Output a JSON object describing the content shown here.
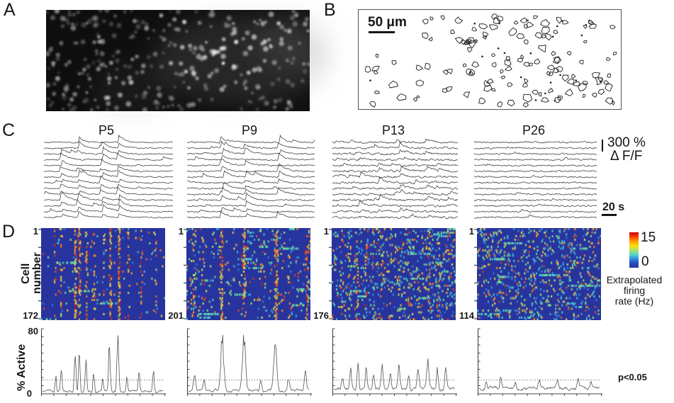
{
  "panels": {
    "a": {
      "label": "A"
    },
    "b": {
      "label": "B",
      "scale_bar_label": "50 μm"
    },
    "c": {
      "label": "C",
      "amp_scale": "300 %",
      "amp_unit": "Δ F/F",
      "time_scale": "20 s"
    },
    "d": {
      "label": "D",
      "y_axis_label": "Cell number",
      "first_cell": "1",
      "colorbar": {
        "max": "15",
        "min": "0",
        "caption_lines": [
          "Extrapolated",
          "firing",
          "rate (Hz)"
        ]
      },
      "active": {
        "y_max": "80",
        "y_min": "0",
        "y_label": "% Active",
        "significance": "p<0.05"
      }
    }
  },
  "chart_data": {
    "type": "composite",
    "heatmap": {
      "value_label": "Extrapolated firing rate (Hz)",
      "range": [
        0,
        15
      ],
      "cells_per_age": [
        172,
        201,
        176,
        114
      ]
    },
    "active": {
      "ylabel": "% Active",
      "ylim": [
        0,
        80
      ],
      "threshold_label": "p<0.05",
      "threshold_value": 17
    },
    "groups": [
      {
        "title": "P5",
        "cell_count": "172",
        "sync_events": [
          0.14,
          0.27,
          0.45,
          0.58
        ],
        "sync_prob": 0.8,
        "trace_amp": 7,
        "indiv_events": 1,
        "trace_noise": 0.85,
        "active_base": 3,
        "active_noise": 2.2,
        "stripe_w": 0.006,
        "participation": 0.8,
        "scatter": 0.015,
        "row_streak": 0.08,
        "active_peaks": [
          {
            "x": 0.11,
            "h": 18,
            "w": 0.008
          },
          {
            "x": 0.155,
            "h": 30,
            "w": 0.008
          },
          {
            "x": 0.27,
            "h": 52,
            "w": 0.009
          },
          {
            "x": 0.305,
            "h": 55,
            "w": 0.008
          },
          {
            "x": 0.36,
            "h": 40,
            "w": 0.009
          },
          {
            "x": 0.425,
            "h": 26,
            "w": 0.008
          },
          {
            "x": 0.5,
            "h": 15,
            "w": 0.008
          },
          {
            "x": 0.555,
            "h": 60,
            "w": 0.009
          },
          {
            "x": 0.625,
            "h": 66,
            "w": 0.01
          },
          {
            "x": 0.7,
            "h": 22,
            "w": 0.008
          },
          {
            "x": 0.8,
            "h": 26,
            "w": 0.008
          },
          {
            "x": 0.92,
            "h": 26,
            "w": 0.009
          }
        ]
      },
      {
        "title": "P9",
        "cell_count": "201",
        "sync_events": [
          0.28,
          0.46,
          0.72
        ],
        "sync_prob": 0.75,
        "trace_amp": 6.5,
        "indiv_events": 1.5,
        "trace_noise": 1.0,
        "active_base": 4,
        "active_noise": 2.5,
        "stripe_w": 0.011,
        "participation": 0.55,
        "scatter": 0.05,
        "row_streak": 0.25,
        "active_peaks": [
          {
            "x": 0.05,
            "h": 20,
            "w": 0.012
          },
          {
            "x": 0.13,
            "h": 12,
            "w": 0.01
          },
          {
            "x": 0.28,
            "h": 62,
            "w": 0.018
          },
          {
            "x": 0.46,
            "h": 60,
            "w": 0.018
          },
          {
            "x": 0.6,
            "h": 14,
            "w": 0.01
          },
          {
            "x": 0.72,
            "h": 58,
            "w": 0.018
          },
          {
            "x": 0.83,
            "h": 16,
            "w": 0.012
          },
          {
            "x": 0.97,
            "h": 24,
            "w": 0.012
          }
        ]
      },
      {
        "title": "P13",
        "cell_count": "176",
        "sync_events": [
          0.22,
          0.38,
          0.55,
          0.75
        ],
        "sync_prob": 0.45,
        "trace_amp": 5.5,
        "indiv_events": 3,
        "trace_noise": 1.4,
        "active_base": 6,
        "active_noise": 3.0,
        "stripe_w": 0.008,
        "participation": 0.3,
        "scatter": 0.1,
        "row_streak": 0.35,
        "active_peaks": [
          {
            "x": 0.07,
            "h": 14,
            "w": 0.01
          },
          {
            "x": 0.14,
            "h": 22,
            "w": 0.01
          },
          {
            "x": 0.2,
            "h": 34,
            "w": 0.01
          },
          {
            "x": 0.27,
            "h": 25,
            "w": 0.01
          },
          {
            "x": 0.33,
            "h": 20,
            "w": 0.01
          },
          {
            "x": 0.4,
            "h": 26,
            "w": 0.012
          },
          {
            "x": 0.47,
            "h": 18,
            "w": 0.01
          },
          {
            "x": 0.54,
            "h": 26,
            "w": 0.012
          },
          {
            "x": 0.62,
            "h": 20,
            "w": 0.01
          },
          {
            "x": 0.7,
            "h": 22,
            "w": 0.012
          },
          {
            "x": 0.78,
            "h": 30,
            "w": 0.012
          },
          {
            "x": 0.86,
            "h": 24,
            "w": 0.01
          },
          {
            "x": 0.93,
            "h": 28,
            "w": 0.01
          }
        ]
      },
      {
        "title": "P26",
        "cell_count": "114",
        "sync_events": [],
        "sync_prob": 0,
        "trace_amp": 4,
        "indiv_events": 1.2,
        "trace_noise": 1.0,
        "active_base": 7,
        "active_noise": 3.2,
        "stripe_w": 0,
        "participation": 0,
        "scatter": 0.11,
        "row_streak": 0.15,
        "active_peaks": [
          {
            "x": 0.06,
            "h": 10,
            "w": 0.01
          },
          {
            "x": 0.18,
            "h": 14,
            "w": 0.01
          },
          {
            "x": 0.3,
            "h": 8,
            "w": 0.01
          },
          {
            "x": 0.5,
            "h": 9,
            "w": 0.012
          },
          {
            "x": 0.65,
            "h": 8,
            "w": 0.01
          },
          {
            "x": 0.82,
            "h": 12,
            "w": 0.01
          },
          {
            "x": 0.93,
            "h": 10,
            "w": 0.01
          }
        ]
      }
    ]
  }
}
